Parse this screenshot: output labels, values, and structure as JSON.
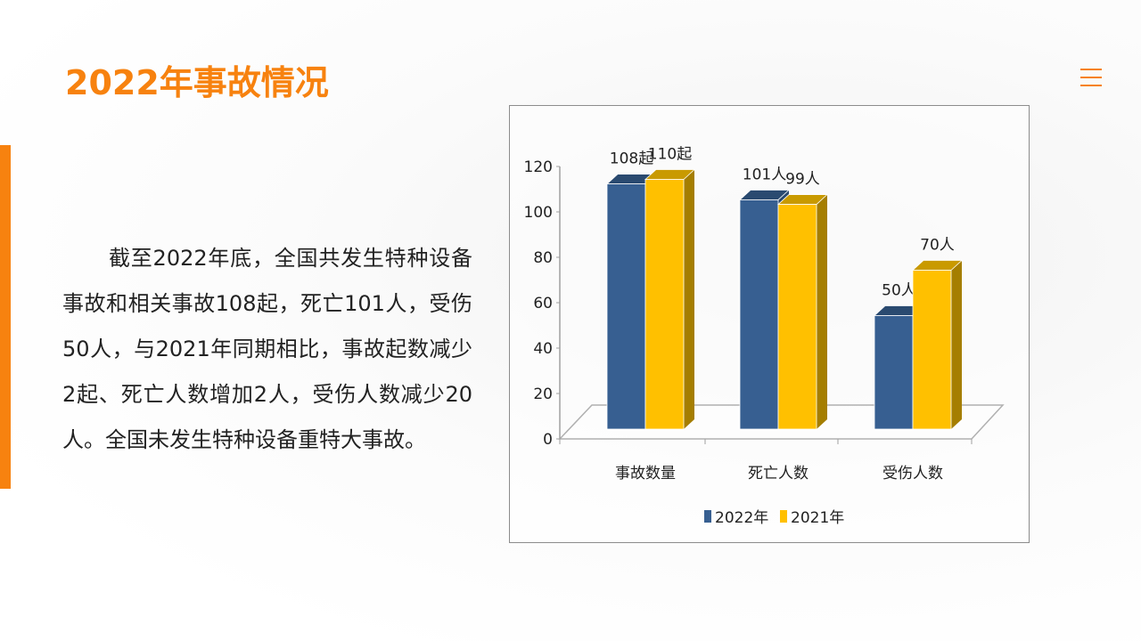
{
  "title": "2022年事故情况",
  "body": "截至2022年底，全国共发生特种设备事故和相关事故108起，死亡101人，受伤50人，与2021年同期相比，事故起数减少2起、死亡人数增加2人，受伤人数减少20人。全国未发生特种设备重特大事故。",
  "colors": {
    "accent": "#f7820f",
    "series_2022": "#375f91",
    "series_2021": "#ffc000"
  },
  "chart_data": {
    "type": "bar",
    "categories": [
      "事故数量",
      "死亡人数",
      "受伤人数"
    ],
    "series": [
      {
        "name": "2022年",
        "values": [
          108,
          101,
          50
        ],
        "labels": [
          "108起",
          "101人",
          "50人"
        ]
      },
      {
        "name": "2021年",
        "values": [
          110,
          99,
          70
        ],
        "labels": [
          "110起",
          "99人",
          "70人"
        ]
      }
    ],
    "yticks": [
      "0",
      "20",
      "40",
      "60",
      "80",
      "100",
      "120"
    ],
    "ylim": [
      0,
      120
    ],
    "legend": "bottom",
    "grid": false
  }
}
